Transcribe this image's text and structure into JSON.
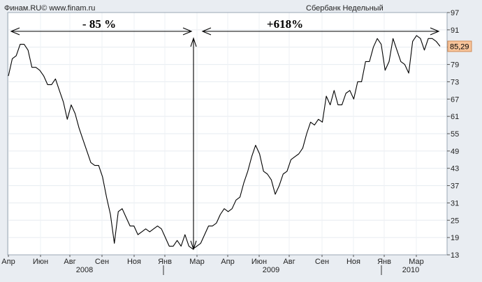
{
  "header": {
    "source_left": "Финам.RU© www.finam.ru",
    "series_title": "Сбербанк Недельный"
  },
  "annotations": {
    "drop_label": "- 85 %",
    "rise_label": "+618%"
  },
  "last_value_label": "85,29",
  "colors": {
    "background": "#e9edf2",
    "plot_background": "#ffffff",
    "line": "#000000",
    "grid": "#e2e8ee",
    "last_value_badge": "#f7c49a"
  },
  "chart_data": {
    "type": "line",
    "title": "Сбербанк Недельный",
    "xlabel": "",
    "ylabel": "",
    "ylim": [
      13,
      97
    ],
    "y_ticks": [
      "97",
      "91",
      "85",
      "79",
      "73",
      "67",
      "61",
      "55",
      "49",
      "43",
      "37",
      "31",
      "25",
      "19",
      "13"
    ],
    "x_month_labels": [
      "Апр",
      "Июн",
      "Авг",
      "Сен",
      "Ноя",
      "Янв",
      "Мар",
      "Апр",
      "Июн",
      "Авг",
      "Сен",
      "Ноя",
      "Янв",
      "Мар"
    ],
    "x_year_labels": [
      "2008",
      "2009",
      "2010"
    ],
    "grid": true,
    "series": [
      {
        "name": "Сбербанк",
        "values": [
          75,
          81,
          82,
          86,
          86,
          84,
          78,
          78,
          77,
          75,
          72,
          72,
          74,
          70,
          66,
          60,
          65,
          62,
          57,
          53,
          49,
          45,
          44,
          44,
          40,
          33,
          27,
          17,
          28,
          29,
          26,
          23,
          23,
          20,
          21,
          22,
          21,
          22,
          23,
          22,
          19,
          16,
          16,
          18,
          16,
          20,
          16,
          15,
          16,
          17,
          20,
          23,
          23,
          24,
          27,
          29,
          28,
          29,
          32,
          33,
          38,
          42,
          47,
          51,
          48,
          42,
          41,
          39,
          34,
          37,
          41,
          42,
          46,
          47,
          48,
          50,
          55,
          59,
          58,
          60,
          59,
          68,
          65,
          70,
          65,
          65,
          69,
          70,
          67,
          73,
          73,
          80,
          80,
          85,
          88,
          86,
          77,
          80,
          88,
          84,
          80,
          79,
          76,
          87,
          89,
          88,
          84,
          88,
          88,
          87,
          85.29
        ]
      }
    ],
    "last_value": 85.29
  }
}
